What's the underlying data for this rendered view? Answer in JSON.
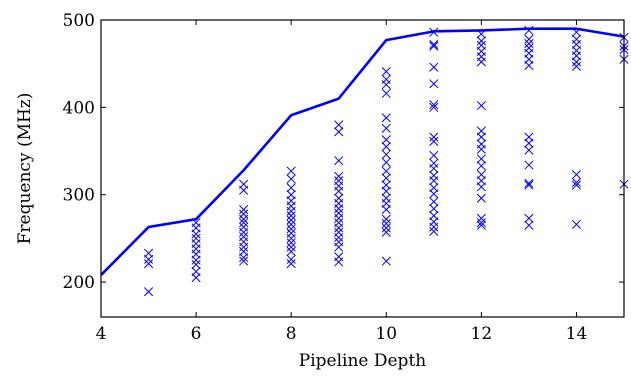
{
  "chart_data": {
    "type": "scatter",
    "title": "",
    "xlabel": "Pipeline Depth",
    "ylabel": "Frequency (MHz)",
    "xlim": [
      4,
      15
    ],
    "ylim": [
      160,
      500
    ],
    "x_ticks": [
      4,
      6,
      8,
      10,
      12,
      14
    ],
    "y_ticks": [
      200,
      300,
      400,
      500
    ],
    "grid": false,
    "legend": "none",
    "color": "#0000ff",
    "series": [
      {
        "style": "line",
        "x": [
          4,
          5,
          6,
          7,
          8,
          9,
          10,
          11,
          12,
          13,
          14,
          15
        ],
        "y": [
          208,
          263,
          272,
          328,
          391,
          410,
          477,
          487,
          488,
          490,
          490,
          481
        ]
      },
      {
        "style": "markers",
        "marker": "x",
        "points": [
          [
            5,
            233
          ],
          [
            5,
            226
          ],
          [
            5,
            221
          ],
          [
            5,
            189
          ],
          [
            6,
            268
          ],
          [
            6,
            262
          ],
          [
            6,
            255
          ],
          [
            6,
            250
          ],
          [
            6,
            244
          ],
          [
            6,
            238
          ],
          [
            6,
            232
          ],
          [
            6,
            225
          ],
          [
            6,
            220
          ],
          [
            6,
            212
          ],
          [
            6,
            205
          ],
          [
            7,
            312
          ],
          [
            7,
            305
          ],
          [
            7,
            283
          ],
          [
            7,
            278
          ],
          [
            7,
            272
          ],
          [
            7,
            268
          ],
          [
            7,
            263
          ],
          [
            7,
            257
          ],
          [
            7,
            252
          ],
          [
            7,
            246
          ],
          [
            7,
            240
          ],
          [
            7,
            235
          ],
          [
            7,
            228
          ],
          [
            7,
            224
          ],
          [
            8,
            327
          ],
          [
            8,
            318
          ],
          [
            8,
            308
          ],
          [
            8,
            300
          ],
          [
            8,
            293
          ],
          [
            8,
            287
          ],
          [
            8,
            281
          ],
          [
            8,
            276
          ],
          [
            8,
            271
          ],
          [
            8,
            266
          ],
          [
            8,
            261
          ],
          [
            8,
            256
          ],
          [
            8,
            250
          ],
          [
            8,
            245
          ],
          [
            8,
            240
          ],
          [
            8,
            235
          ],
          [
            8,
            226
          ],
          [
            8,
            221
          ],
          [
            9,
            380
          ],
          [
            9,
            372
          ],
          [
            9,
            339
          ],
          [
            9,
            321
          ],
          [
            9,
            316
          ],
          [
            9,
            310
          ],
          [
            9,
            304
          ],
          [
            9,
            296
          ],
          [
            9,
            290
          ],
          [
            9,
            284
          ],
          [
            9,
            279
          ],
          [
            9,
            273
          ],
          [
            9,
            268
          ],
          [
            9,
            262
          ],
          [
            9,
            257
          ],
          [
            9,
            251
          ],
          [
            9,
            246
          ],
          [
            9,
            240
          ],
          [
            9,
            229
          ],
          [
            9,
            223
          ],
          [
            10,
            441
          ],
          [
            10,
            432
          ],
          [
            10,
            426
          ],
          [
            10,
            416
          ],
          [
            10,
            388
          ],
          [
            10,
            376
          ],
          [
            10,
            363
          ],
          [
            10,
            355
          ],
          [
            10,
            346
          ],
          [
            10,
            337
          ],
          [
            10,
            327
          ],
          [
            10,
            319
          ],
          [
            10,
            311
          ],
          [
            10,
            304
          ],
          [
            10,
            296
          ],
          [
            10,
            290
          ],
          [
            10,
            283
          ],
          [
            10,
            272
          ],
          [
            10,
            267
          ],
          [
            10,
            262
          ],
          [
            10,
            257
          ],
          [
            10,
            224
          ],
          [
            11,
            486
          ],
          [
            11,
            472
          ],
          [
            11,
            470
          ],
          [
            11,
            446
          ],
          [
            11,
            427
          ],
          [
            11,
            403
          ],
          [
            11,
            400
          ],
          [
            11,
            366
          ],
          [
            11,
            361
          ],
          [
            11,
            345
          ],
          [
            11,
            336
          ],
          [
            11,
            330
          ],
          [
            11,
            322
          ],
          [
            11,
            316
          ],
          [
            11,
            308
          ],
          [
            11,
            301
          ],
          [
            11,
            292
          ],
          [
            11,
            284
          ],
          [
            11,
            276
          ],
          [
            11,
            269
          ],
          [
            11,
            263
          ],
          [
            11,
            258
          ],
          [
            12,
            484
          ],
          [
            12,
            476
          ],
          [
            12,
            471
          ],
          [
            12,
            464
          ],
          [
            12,
            458
          ],
          [
            12,
            452
          ],
          [
            12,
            402
          ],
          [
            12,
            373
          ],
          [
            12,
            366
          ],
          [
            12,
            358
          ],
          [
            12,
            352
          ],
          [
            12,
            341
          ],
          [
            12,
            333
          ],
          [
            12,
            323
          ],
          [
            12,
            316
          ],
          [
            12,
            309
          ],
          [
            12,
            296
          ],
          [
            12,
            273
          ],
          [
            12,
            268
          ],
          [
            12,
            265
          ],
          [
            13,
            488
          ],
          [
            13,
            478
          ],
          [
            13,
            473
          ],
          [
            13,
            468
          ],
          [
            13,
            462
          ],
          [
            13,
            455
          ],
          [
            13,
            448
          ],
          [
            13,
            366
          ],
          [
            13,
            359
          ],
          [
            13,
            351
          ],
          [
            13,
            334
          ],
          [
            13,
            313
          ],
          [
            13,
            311
          ],
          [
            13,
            273
          ],
          [
            13,
            265
          ],
          [
            14,
            486
          ],
          [
            14,
            478
          ],
          [
            14,
            472
          ],
          [
            14,
            465
          ],
          [
            14,
            459
          ],
          [
            14,
            452
          ],
          [
            14,
            447
          ],
          [
            14,
            323
          ],
          [
            14,
            314
          ],
          [
            14,
            311
          ],
          [
            14,
            266
          ],
          [
            15,
            480
          ],
          [
            15,
            470
          ],
          [
            15,
            466
          ],
          [
            15,
            455
          ],
          [
            15,
            312
          ]
        ]
      }
    ]
  }
}
